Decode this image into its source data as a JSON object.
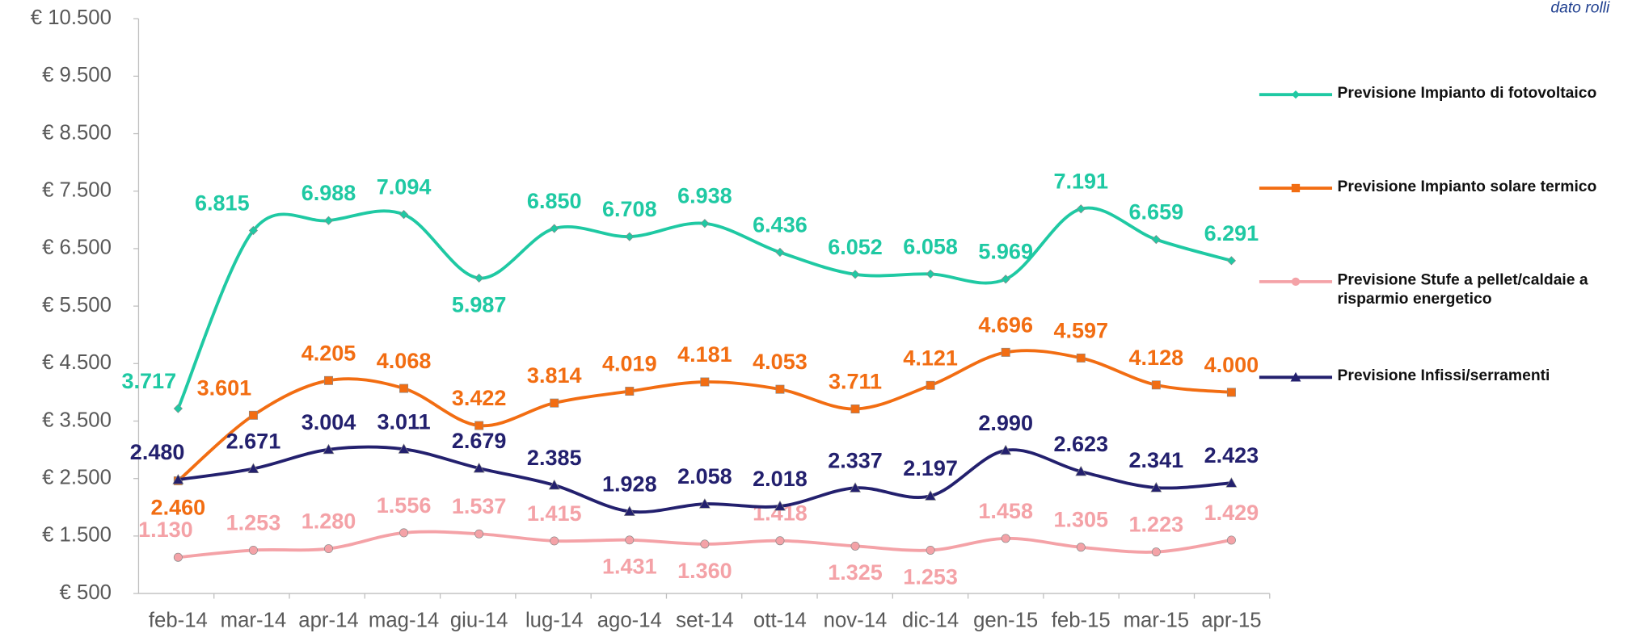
{
  "chart_data": {
    "type": "line",
    "annotation": "dato rolli",
    "categories": [
      "feb-14",
      "mar-14",
      "apr-14",
      "mag-14",
      "giu-14",
      "lug-14",
      "ago-14",
      "set-14",
      "ott-14",
      "nov-14",
      "dic-14",
      "gen-15",
      "feb-15",
      "mar-15",
      "apr-15"
    ],
    "ylim": [
      500,
      10500
    ],
    "yticks": [
      {
        "value": 500,
        "label": "€ 500"
      },
      {
        "value": 1500,
        "label": "€ 1.500"
      },
      {
        "value": 2500,
        "label": "€ 2.500"
      },
      {
        "value": 3500,
        "label": "€ 3.500"
      },
      {
        "value": 4500,
        "label": "€ 4.500"
      },
      {
        "value": 5500,
        "label": "€ 5.500"
      },
      {
        "value": 6500,
        "label": "€ 6.500"
      },
      {
        "value": 7500,
        "label": "€ 7.500"
      },
      {
        "value": 8500,
        "label": "€ 8.500"
      },
      {
        "value": 9500,
        "label": "€ 9.500"
      },
      {
        "value": 10500,
        "label": "€ 10.500"
      }
    ],
    "grid": false,
    "legend": "right",
    "series": [
      {
        "name": "Previsione Impianto di fotovoltaico",
        "color": "#1fc9a3",
        "marker": "diamond",
        "values": [
          3717,
          6815,
          6988,
          7094,
          5987,
          6850,
          6708,
          6938,
          6436,
          6052,
          6058,
          5969,
          7191,
          6659,
          6291
        ],
        "value_labels": [
          "3.717",
          "6.815",
          "6.988",
          "7.094",
          "5.987",
          "6.850",
          "6.708",
          "6.938",
          "6.436",
          "6.052",
          "6.058",
          "5.969",
          "7.191",
          "6.659",
          "6.291"
        ]
      },
      {
        "name": "Previsione Impianto solare termico",
        "color": "#f26d12",
        "marker": "square",
        "values": [
          2460,
          3601,
          4205,
          4068,
          3422,
          3814,
          4019,
          4181,
          4053,
          3711,
          4121,
          4696,
          4597,
          4128,
          4000
        ],
        "value_labels": [
          "2.460",
          "3.601",
          "4.205",
          "4.068",
          "3.422",
          "3.814",
          "4.019",
          "4.181",
          "4.053",
          "3.711",
          "4.121",
          "4.696",
          "4.597",
          "4.128",
          "4.000"
        ]
      },
      {
        "name": "Previsione Stufe a pellet/caldaie a risparmio energetico",
        "color": "#f4a2a7",
        "marker": "circle",
        "values": [
          1130,
          1253,
          1280,
          1556,
          1537,
          1415,
          1431,
          1360,
          1418,
          1325,
          1253,
          1458,
          1305,
          1223,
          1429
        ],
        "value_labels": [
          "1.130",
          "1.253",
          "1.280",
          "1.556",
          "1.537",
          "1.415",
          "1.431",
          "1.360",
          "1.418",
          "1.325",
          "1.253",
          "1.458",
          "1.305",
          "1.223",
          "1.429"
        ]
      },
      {
        "name": "Previsione Infissi/serramenti",
        "color": "#23206e",
        "marker": "triangle",
        "values": [
          2480,
          2671,
          3004,
          3011,
          2679,
          2385,
          1928,
          2058,
          2018,
          2337,
          2197,
          2990,
          2623,
          2341,
          2423
        ],
        "value_labels": [
          "2.480",
          "2.671",
          "3.004",
          "3.011",
          "2.679",
          "2.385",
          "1.928",
          "2.058",
          "2.018",
          "2.337",
          "2.197",
          "2.990",
          "2.623",
          "2.341",
          "2.423"
        ]
      }
    ]
  }
}
